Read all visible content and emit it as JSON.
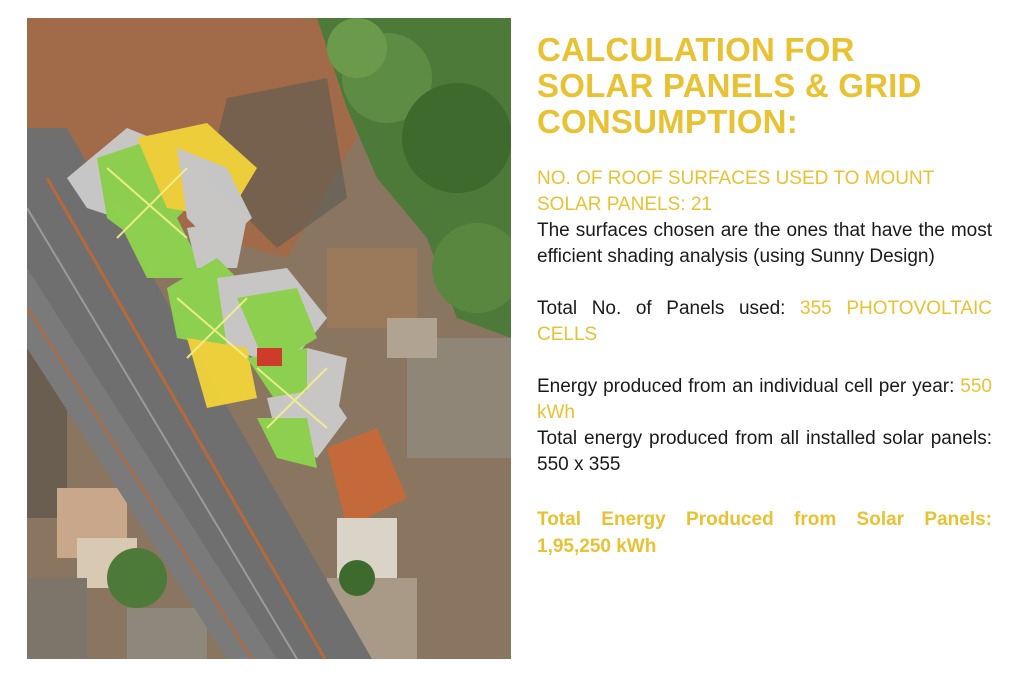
{
  "title": "CALCULATION FOR\nSOLAR PANELS & GRID\nCONSUMPTION:",
  "roof_surfaces_heading": "NO. OF ROOF SURFACES USED TO MOUNT\nSOLAR PANELS: 21",
  "roof_surfaces_text": "The surfaces chosen are the ones that have the most efficient shading analysis (using Sunny Design)",
  "panels_label": "Total No. of Panels used: ",
  "panels_value": "355 PHOTOVOLTAIC CELLS",
  "energy_cell_label": "Energy produced from an individual cell per year: ",
  "energy_cell_value": "550 kWh",
  "energy_total_text": "Total energy produced from all installed solar panels: 550 x 355",
  "total_result": "Total Energy Produced from Solar Panels: 1,95,250 kWh",
  "colors": {
    "accent": "#e8c233",
    "body_text": "#1a1a1a",
    "road": "#6f6f6f",
    "soil": "#a56a45",
    "trees": "#4d7a38",
    "panel_green": "#8ed24f",
    "panel_yellow": "#f0d23a",
    "panel_grey": "#c9c9c9"
  }
}
